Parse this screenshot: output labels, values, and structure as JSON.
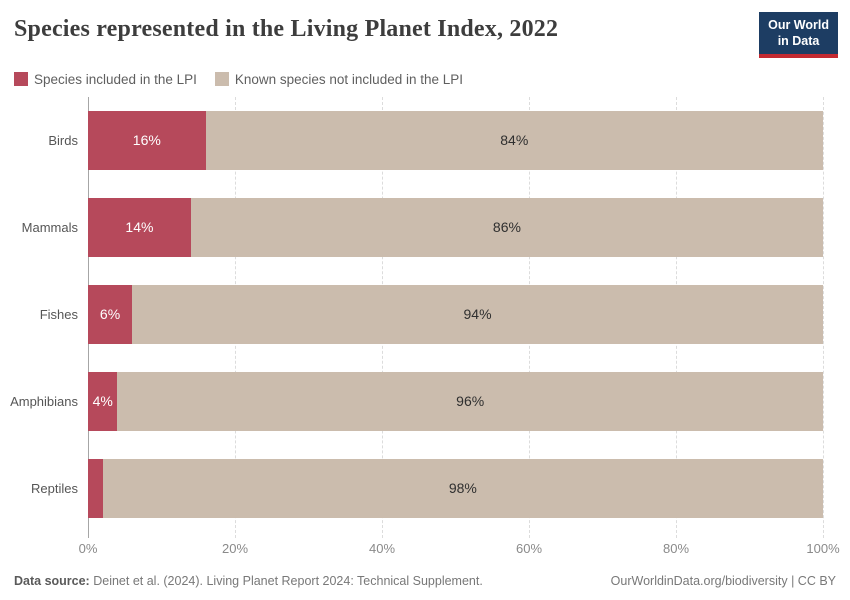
{
  "header": {
    "title": "Species represented in the Living Planet Index, 2022",
    "logo_line1": "Our World",
    "logo_line2": "in Data"
  },
  "legend": [
    {
      "label": "Species included in the LPI",
      "color": "#b6495b"
    },
    {
      "label": "Known species not included in the LPI",
      "color": "#cbbcad"
    }
  ],
  "chart_data": {
    "type": "bar",
    "orientation": "horizontal",
    "stacked": true,
    "title": "Species represented in the Living Planet Index, 2022",
    "categories": [
      "Birds",
      "Mammals",
      "Fishes",
      "Amphibians",
      "Reptiles"
    ],
    "series": [
      {
        "name": "Species included in the LPI",
        "color": "#b6495b",
        "values": [
          16,
          14,
          6,
          4,
          2
        ]
      },
      {
        "name": "Known species not included in the LPI",
        "color": "#cbbcad",
        "values": [
          84,
          86,
          94,
          96,
          98
        ]
      }
    ],
    "value_labels": [
      [
        "16%",
        "84%"
      ],
      [
        "14%",
        "86%"
      ],
      [
        "6%",
        "94%"
      ],
      [
        "4%",
        "96%"
      ],
      [
        null,
        "98%"
      ]
    ],
    "x_ticks": [
      "0%",
      "20%",
      "40%",
      "60%",
      "80%",
      "100%"
    ],
    "xlim": [
      0,
      100
    ],
    "grid": "dashed-vertical",
    "legend_position": "top"
  },
  "footer": {
    "source_label": "Data source:",
    "source_text": "Deinet et al. (2024). Living Planet Report 2024: Technical Supplement.",
    "right_text": "OurWorldinData.org/biodiversity | CC BY"
  },
  "colors": {
    "included": "#b6495b",
    "not_included": "#cbbcad",
    "logo_navy": "#1d3d63",
    "logo_red": "#c32a31"
  }
}
